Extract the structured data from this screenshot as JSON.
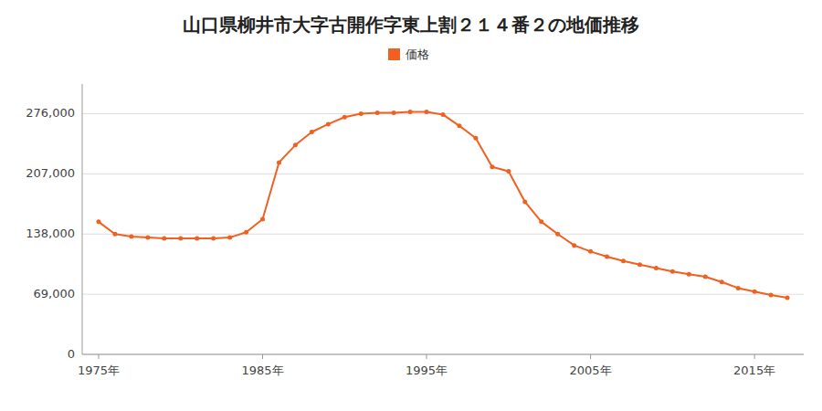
{
  "chart_data": {
    "type": "line",
    "title": "山口県柳井市大字古開作字東上割２１４番２の地価推移",
    "x": [
      1975,
      1976,
      1977,
      1978,
      1979,
      1980,
      1981,
      1982,
      1983,
      1984,
      1985,
      1986,
      1987,
      1988,
      1989,
      1990,
      1991,
      1992,
      1993,
      1994,
      1995,
      1996,
      1997,
      1998,
      1999,
      2000,
      2001,
      2002,
      2003,
      2004,
      2005,
      2006,
      2007,
      2008,
      2009,
      2010,
      2011,
      2012,
      2013,
      2014,
      2015,
      2016,
      2017
    ],
    "series": [
      {
        "name": "価格",
        "color": "#f06020",
        "marker": "circle",
        "line_style": "solid",
        "values": [
          152000,
          138000,
          135000,
          134000,
          133000,
          133000,
          133000,
          133000,
          134000,
          140000,
          155000,
          220000,
          240000,
          255000,
          264000,
          272000,
          276000,
          277000,
          277000,
          278000,
          278000,
          275000,
          262000,
          248000,
          215000,
          210000,
          175000,
          152000,
          138000,
          125000,
          118000,
          112000,
          107000,
          103000,
          99000,
          95000,
          92000,
          89000,
          83000,
          76000,
          72000,
          68000,
          65000
        ]
      }
    ],
    "xlim": [
      1974,
      2018
    ],
    "xticks": [
      {
        "value": 1975,
        "label": "1975年"
      },
      {
        "value": 1985,
        "label": "1985年"
      },
      {
        "value": 1995,
        "label": "1995年"
      },
      {
        "value": 2005,
        "label": "2005年"
      },
      {
        "value": 2015,
        "label": "2015年"
      }
    ],
    "ylim": [
      0,
      310000
    ],
    "yticks": [
      0,
      {
        "value": 69000,
        "label": "69,000"
      },
      {
        "value": 138000,
        "label": "138,000"
      },
      {
        "value": 207000,
        "label": "207,000"
      },
      {
        "value": 276000,
        "label": "276,000"
      }
    ],
    "grid": true,
    "legend": "top"
  }
}
